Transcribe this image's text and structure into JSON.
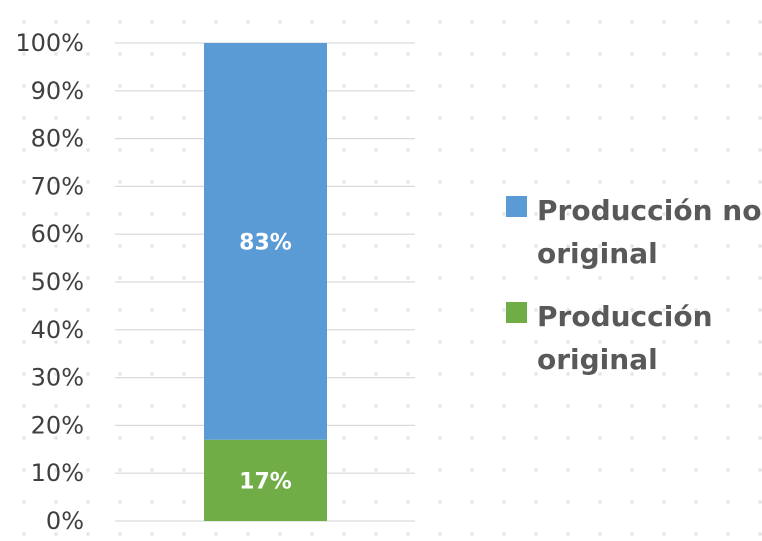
{
  "chart_data": {
    "type": "bar",
    "stacked": true,
    "categories": [
      ""
    ],
    "series": [
      {
        "name": "Producción original",
        "values": [
          17
        ],
        "value_label": "17%",
        "color": "#70AD47"
      },
      {
        "name": "Producción no original",
        "values": [
          83
        ],
        "value_label": "83%",
        "color": "#5B9BD5"
      }
    ],
    "ylim": [
      0,
      100
    ],
    "y_ticks": [
      "0%",
      "10%",
      "20%",
      "30%",
      "40%",
      "50%",
      "60%",
      "70%",
      "80%",
      "90%",
      "100%"
    ],
    "grid": true,
    "legend": {
      "placement": "right",
      "entries": [
        {
          "lines": [
            "Producción no",
            "original"
          ],
          "color": "#5B9BD5"
        },
        {
          "lines": [
            "Producción",
            "original"
          ],
          "color": "#70AD47"
        }
      ]
    }
  }
}
